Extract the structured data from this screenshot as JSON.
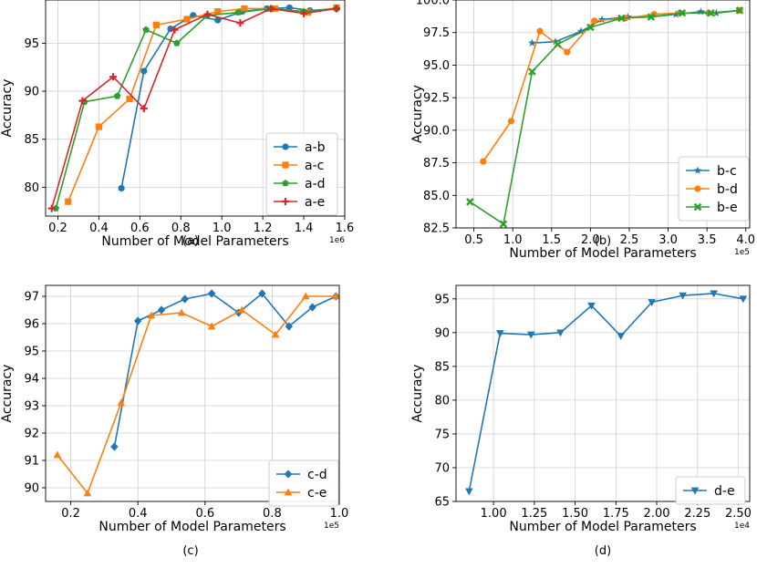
{
  "chart_data": [
    {
      "type": "line",
      "caption": "(a)",
      "xlabel": "Number of Model Parameters",
      "ylabel": "Accuracy",
      "x_scale_label": "1e6",
      "xlim": [
        0.14,
        1.6
      ],
      "ylim": [
        77,
        99.5
      ],
      "xticks": [
        0.2,
        0.4,
        0.6,
        0.8,
        1.0,
        1.2,
        1.4,
        1.6
      ],
      "xtick_labels": [
        "0.2",
        "0.4",
        "0.6",
        "0.8",
        "1.0",
        "1.2",
        "1.4",
        "1.6"
      ],
      "yticks": [
        80,
        85,
        90,
        95
      ],
      "ytick_labels": [
        "80",
        "85",
        "90",
        "95"
      ],
      "grid": true,
      "legend_position": "lower-right",
      "series": [
        {
          "name": "a-b",
          "color": "#1f77b4",
          "marker": "circle",
          "x": [
            0.51,
            0.62,
            0.75,
            0.86,
            0.98,
            1.1,
            1.22,
            1.33,
            1.43,
            1.56
          ],
          "y": [
            79.9,
            92.1,
            96.5,
            97.9,
            97.4,
            98.3,
            98.6,
            98.7,
            98.4,
            98.6
          ]
        },
        {
          "name": "a-c",
          "color": "#ff7f0e",
          "marker": "square",
          "x": [
            0.25,
            0.4,
            0.55,
            0.68,
            0.83,
            0.98,
            1.11,
            1.26,
            1.42,
            1.56
          ],
          "y": [
            78.5,
            86.3,
            89.2,
            96.9,
            97.5,
            98.3,
            98.6,
            98.6,
            98.2,
            98.7
          ]
        },
        {
          "name": "a-d",
          "color": "#2ca02c",
          "marker": "pentagon",
          "x": [
            0.19,
            0.33,
            0.49,
            0.63,
            0.78,
            0.93,
            1.08,
            1.24,
            1.4,
            1.56
          ],
          "y": [
            77.8,
            88.9,
            89.5,
            96.4,
            95.0,
            97.9,
            98.2,
            98.6,
            98.3,
            98.6
          ]
        },
        {
          "name": "a-e",
          "color": "#d62728",
          "marker": "plus",
          "x": [
            0.17,
            0.32,
            0.47,
            0.62,
            0.77,
            0.93,
            1.09,
            1.24,
            1.4,
            1.56
          ],
          "y": [
            77.8,
            89.0,
            91.5,
            88.2,
            96.4,
            98.0,
            97.1,
            98.6,
            98.1,
            98.6
          ]
        }
      ]
    },
    {
      "type": "line",
      "caption": "(b)",
      "xlabel": "Number of Model Parameters",
      "ylabel": "Accuracy",
      "x_scale_label": "1e5",
      "xlim": [
        0.27,
        4.05
      ],
      "ylim": [
        82.5,
        100.0
      ],
      "xticks": [
        0.5,
        1.0,
        1.5,
        2.0,
        2.5,
        3.0,
        3.5,
        4.0
      ],
      "xtick_labels": [
        "0.5",
        "1.0",
        "1.5",
        "2.0",
        "2.5",
        "3.0",
        "3.5",
        "4.0"
      ],
      "yticks": [
        82.5,
        85.0,
        87.5,
        90.0,
        92.5,
        95.0,
        97.5,
        100.0
      ],
      "ytick_labels": [
        "82.5",
        "85.0",
        "87.5",
        "90.0",
        "92.5",
        "95.0",
        "97.5",
        "100.0"
      ],
      "grid": true,
      "legend_position": "lower-right",
      "series": [
        {
          "name": "b-c",
          "color": "#1f77b4",
          "marker": "star",
          "x": [
            1.25,
            1.55,
            1.88,
            2.15,
            2.48,
            2.78,
            3.1,
            3.42,
            3.62,
            3.92
          ],
          "y": [
            96.7,
            96.8,
            97.6,
            98.5,
            98.7,
            98.7,
            98.9,
            99.1,
            99.0,
            99.2
          ]
        },
        {
          "name": "b-d",
          "color": "#ff7f0e",
          "marker": "circle",
          "x": [
            0.62,
            0.98,
            1.35,
            1.7,
            2.05,
            2.45,
            2.82,
            3.15,
            3.52,
            3.92
          ],
          "y": [
            87.6,
            90.7,
            97.6,
            96.0,
            98.4,
            98.6,
            98.9,
            99.0,
            99.0,
            99.2
          ]
        },
        {
          "name": "b-e",
          "color": "#2ca02c",
          "marker": "x",
          "x": [
            0.45,
            0.88,
            1.25,
            1.58,
            2.0,
            2.4,
            2.78,
            3.18,
            3.55,
            3.92
          ],
          "y": [
            84.5,
            82.8,
            94.5,
            96.6,
            97.9,
            98.6,
            98.7,
            99.0,
            99.0,
            99.2
          ]
        }
      ]
    },
    {
      "type": "line",
      "caption": "(c)",
      "xlabel": "Number of Model Parameters",
      "ylabel": "Accuracy",
      "x_scale_label": "1e5",
      "xlim": [
        0.125,
        1.0
      ],
      "ylim": [
        89.5,
        97.4
      ],
      "xticks": [
        0.2,
        0.4,
        0.6,
        0.8,
        1.0
      ],
      "xtick_labels": [
        "0.2",
        "0.4",
        "0.6",
        "0.8",
        "1.0"
      ],
      "yticks": [
        90,
        91,
        92,
        93,
        94,
        95,
        96,
        97
      ],
      "ytick_labels": [
        "90",
        "91",
        "92",
        "93",
        "94",
        "95",
        "96",
        "97"
      ],
      "grid": true,
      "legend_position": "lower-right",
      "series": [
        {
          "name": "c-d",
          "color": "#1f77b4",
          "marker": "diamond",
          "x": [
            0.33,
            0.4,
            0.47,
            0.54,
            0.62,
            0.7,
            0.77,
            0.85,
            0.92,
            0.99
          ],
          "y": [
            91.5,
            96.1,
            96.5,
            96.9,
            97.1,
            96.4,
            97.1,
            95.9,
            96.6,
            97.0
          ]
        },
        {
          "name": "c-e",
          "color": "#ff7f0e",
          "marker": "triangle-up",
          "x": [
            0.16,
            0.25,
            0.35,
            0.44,
            0.53,
            0.62,
            0.71,
            0.81,
            0.9,
            0.99
          ],
          "y": [
            91.2,
            89.8,
            93.1,
            96.3,
            96.4,
            95.9,
            96.5,
            95.6,
            97.0,
            97.0
          ]
        }
      ]
    },
    {
      "type": "line",
      "caption": "(d)",
      "xlabel": "Number of Model Parameters",
      "ylabel": "Accuracy",
      "x_scale_label": "1e4",
      "xlim": [
        0.77,
        2.57
      ],
      "ylim": [
        65,
        97
      ],
      "xticks": [
        1.0,
        1.25,
        1.5,
        1.75,
        2.0,
        2.25,
        2.5
      ],
      "xtick_labels": [
        "1.00",
        "1.25",
        "1.50",
        "1.75",
        "2.00",
        "2.25",
        "2.50"
      ],
      "yticks": [
        65,
        70,
        75,
        80,
        85,
        90,
        95
      ],
      "ytick_labels": [
        "65",
        "70",
        "75",
        "80",
        "85",
        "90",
        "95"
      ],
      "grid": true,
      "legend_position": "lower-right",
      "series": [
        {
          "name": "d-e",
          "color": "#1f77b4",
          "marker": "triangle-down",
          "x": [
            0.85,
            1.04,
            1.23,
            1.41,
            1.6,
            1.78,
            1.97,
            2.16,
            2.35,
            2.53
          ],
          "y": [
            66.5,
            89.9,
            89.7,
            90.0,
            94.0,
            89.5,
            94.5,
            95.5,
            95.8,
            95.0
          ]
        }
      ]
    }
  ]
}
